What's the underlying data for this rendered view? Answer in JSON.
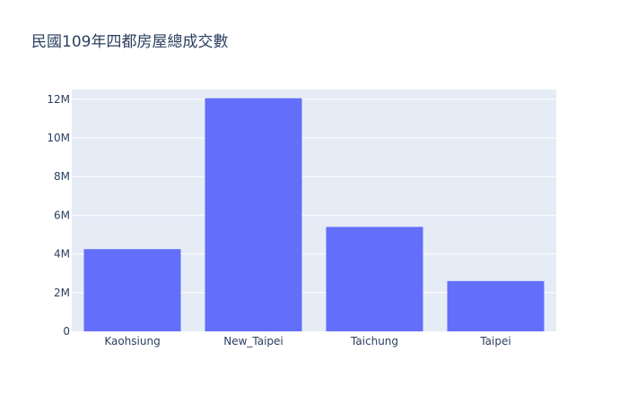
{
  "chart_data": {
    "type": "bar",
    "title": "民國109年四都房屋總成交數",
    "categories": [
      "Kaohsiung",
      "New_Taipei",
      "Taichung",
      "Taipei"
    ],
    "values": [
      4250000,
      12050000,
      5400000,
      2600000
    ],
    "ylim": [
      0,
      12500000
    ],
    "yticks": [
      0,
      2000000,
      4000000,
      6000000,
      8000000,
      10000000,
      12000000
    ],
    "ytick_labels": [
      "0",
      "2M",
      "4M",
      "6M",
      "8M",
      "10M",
      "12M"
    ],
    "xlabel": "",
    "ylabel": "",
    "grid": true,
    "colors": {
      "bar": "#636efa",
      "plot_bg": "#e5ecf6",
      "grid": "#ffffff",
      "text": "#2a3f5f"
    }
  }
}
